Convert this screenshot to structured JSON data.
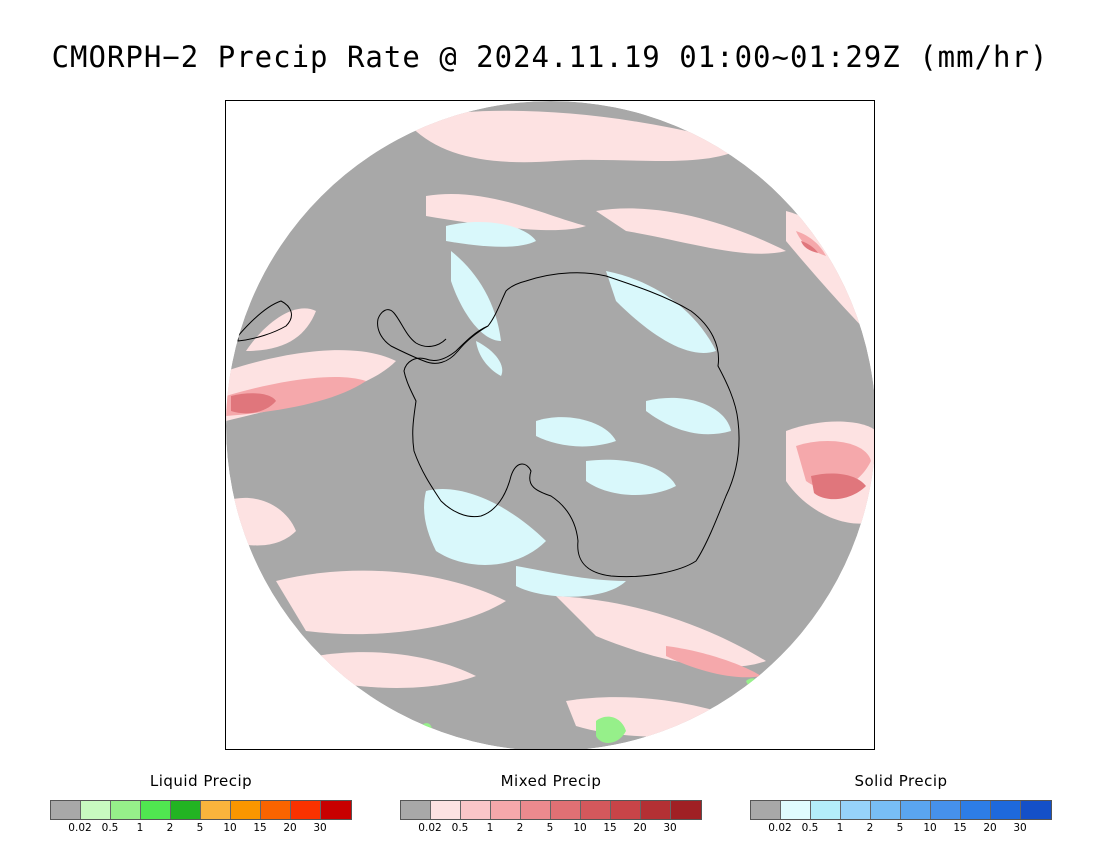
{
  "title": "CMORPH−2 Precip Rate @ 2024.11.19 01:00~01:29Z (mm/hr)",
  "map": {
    "projection": "south-polar-stereographic",
    "region": "Antarctica and Southern Ocean",
    "colors": {
      "no_precip": "#a8a8a8",
      "mixed_light": "#fde2e2",
      "mixed_mid": "#f5a8ab",
      "mixed_heavy": "#e0767c",
      "solid_light": "#d9f8fb",
      "liquid_light": "#96f08a",
      "coast": "#000000",
      "frame_bg": "#ffffff"
    }
  },
  "legends": [
    {
      "title": "Liquid Precip",
      "colors": [
        "#a8a8a8",
        "#c8fac0",
        "#96f08a",
        "#50e650",
        "#22b422",
        "#fab43c",
        "#fa9600",
        "#fa6400",
        "#fa3200",
        "#c80000"
      ],
      "ticks": [
        "0.02",
        "0.5",
        "1",
        "2",
        "5",
        "10",
        "15",
        "20",
        "30"
      ]
    },
    {
      "title": "Mixed Precip",
      "colors": [
        "#a8a8a8",
        "#fde2e2",
        "#fac6c8",
        "#f5a8ab",
        "#ec8a8e",
        "#e07074",
        "#d4585c",
        "#c84448",
        "#b43034",
        "#a02024"
      ],
      "ticks": [
        "0.02",
        "0.5",
        "1",
        "2",
        "5",
        "10",
        "15",
        "20",
        "30"
      ]
    },
    {
      "title": "Solid Precip",
      "colors": [
        "#a8a8a8",
        "#e0fcfe",
        "#b4eefa",
        "#96d2fa",
        "#78bef5",
        "#5aa5f0",
        "#4691eb",
        "#2d7de6",
        "#1e69dc",
        "#1450c8"
      ],
      "ticks": [
        "0.02",
        "0.5",
        "1",
        "2",
        "5",
        "10",
        "15",
        "20",
        "30"
      ]
    }
  ]
}
